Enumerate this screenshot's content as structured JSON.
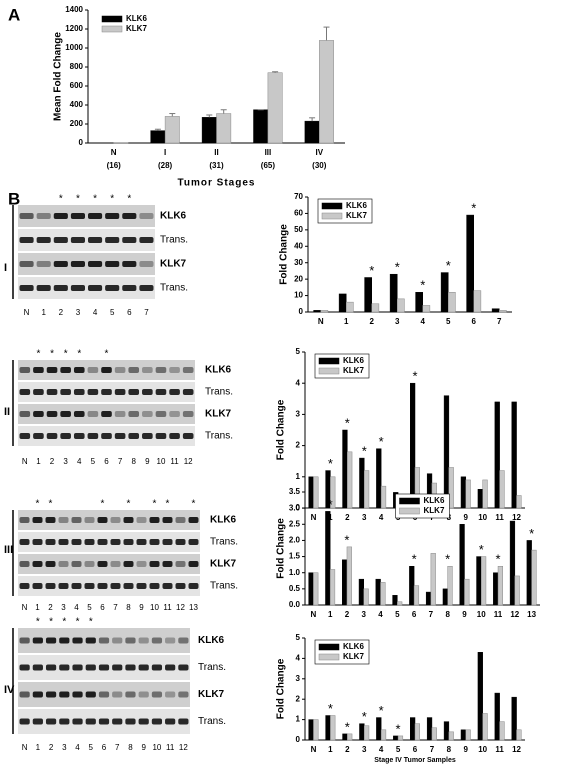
{
  "panel_labels": [
    "A",
    "B"
  ],
  "chart_data": [
    {
      "type": "bar",
      "y_label": "Mean Fold Change",
      "x_label": "Tumor Stages",
      "categories": [
        "N",
        "I",
        "II",
        "III",
        "IV"
      ],
      "category_sublabels": [
        "(16)",
        "(28)",
        "(31)",
        "(65)",
        "(30)"
      ],
      "series": [
        {
          "name": "KLK6",
          "color": "#000000",
          "values": [
            1,
            130,
            270,
            350,
            230
          ],
          "errors": [
            null,
            15,
            25,
            0,
            35
          ]
        },
        {
          "name": "KLK7",
          "color": "#c8c8c8",
          "values": [
            1,
            280,
            310,
            740,
            1080
          ],
          "errors": [
            null,
            30,
            40,
            10,
            140
          ]
        }
      ],
      "ylim": [
        0,
        1400
      ],
      "yticks": [
        0,
        200,
        400,
        600,
        800,
        1000,
        1200,
        1400
      ],
      "legend": "upper left"
    },
    {
      "type": "bar",
      "y_label": "Fold Change",
      "star_text": "*",
      "categories": [
        "N",
        "1",
        "2",
        "3",
        "4",
        "5",
        "6",
        "7"
      ],
      "starred": [
        false,
        false,
        true,
        true,
        true,
        true,
        true,
        false
      ],
      "series": [
        {
          "name": "KLK6",
          "color": "#000000",
          "values": [
            1,
            11,
            21,
            23,
            12,
            24,
            59,
            2
          ]
        },
        {
          "name": "KLK7",
          "color": "#c8c8c8",
          "values": [
            1,
            6,
            5,
            8,
            4,
            12,
            13,
            1
          ]
        }
      ],
      "ylim": [
        0,
        70
      ],
      "yticks": [
        0,
        10,
        20,
        30,
        40,
        50,
        60,
        70
      ],
      "legend": "upper left"
    },
    {
      "type": "bar",
      "y_label": "Fold Change",
      "star_text": "*",
      "categories": [
        "N",
        "1",
        "2",
        "3",
        "4",
        "5",
        "6",
        "7",
        "8",
        "9",
        "10",
        "11",
        "12"
      ],
      "starred": [
        false,
        true,
        true,
        true,
        true,
        false,
        true,
        false,
        false,
        false,
        false,
        false,
        false
      ],
      "series": [
        {
          "name": "KLK6",
          "color": "#000000",
          "values": [
            1,
            1.2,
            2.5,
            1.6,
            1.9,
            0.5,
            4.0,
            1.1,
            3.6,
            1.0,
            0.6,
            3.4,
            3.4
          ]
        },
        {
          "name": "KLK7",
          "color": "#c8c8c8",
          "values": [
            1,
            1.0,
            1.8,
            1.2,
            0.7,
            0.4,
            1.3,
            0.8,
            1.3,
            0.9,
            0.9,
            1.2,
            0.4
          ]
        }
      ],
      "ylim": [
        0,
        5
      ],
      "yticks": [
        0,
        1,
        2,
        3,
        4,
        5
      ],
      "legend": "upper left"
    },
    {
      "type": "bar",
      "y_label": "Fold Change",
      "star_text": "*",
      "categories": [
        "N",
        "1",
        "2",
        "3",
        "4",
        "5",
        "6",
        "7",
        "8",
        "9",
        "10",
        "11",
        "12",
        "13"
      ],
      "starred": [
        false,
        true,
        true,
        false,
        false,
        false,
        true,
        false,
        true,
        false,
        true,
        true,
        false,
        true
      ],
      "series": [
        {
          "name": "KLK6",
          "color": "#000000",
          "values": [
            1,
            2.9,
            1.4,
            0.8,
            0.8,
            0.3,
            1.2,
            0.4,
            0.5,
            2.5,
            1.5,
            1.0,
            2.6,
            2.0
          ]
        },
        {
          "name": "KLK7",
          "color": "#c8c8c8",
          "values": [
            1,
            1.1,
            1.8,
            0.5,
            0.7,
            0.1,
            0.6,
            1.6,
            1.2,
            0.8,
            1.5,
            1.2,
            0.9,
            1.7
          ]
        }
      ],
      "ylim": [
        0,
        3.5
      ],
      "yticks": [
        {
          "value": 0,
          "label": "0.0"
        },
        0.5,
        {
          "value": 1,
          "label": "1.0"
        },
        1.5,
        {
          "value": 2,
          "label": "2.0"
        },
        2.5,
        {
          "value": 3,
          "label": "3.0"
        },
        3.5
      ],
      "legend": "upper center"
    },
    {
      "type": "bar",
      "y_label": "Fold Change",
      "x_label": "Stage IV Tumor Samples",
      "star_text": "*",
      "categories": [
        "N",
        "1",
        "2",
        "3",
        "4",
        "5",
        "6",
        "7",
        "8",
        "9",
        "10",
        "11",
        "12"
      ],
      "starred": [
        false,
        true,
        true,
        true,
        true,
        true,
        false,
        false,
        false,
        false,
        false,
        false,
        false
      ],
      "series": [
        {
          "name": "KLK6",
          "color": "#000000",
          "values": [
            1,
            1.2,
            0.3,
            0.8,
            1.1,
            0.2,
            1.1,
            1.1,
            0.9,
            0.5,
            4.3,
            2.3,
            2.1
          ]
        },
        {
          "name": "KLK7",
          "color": "#c8c8c8",
          "values": [
            1,
            1.2,
            0.3,
            0.7,
            0.5,
            0.2,
            0.8,
            0.6,
            0.4,
            0.5,
            1.3,
            0.9,
            0.5
          ]
        }
      ],
      "ylim": [
        0,
        5
      ],
      "yticks": [
        0,
        1,
        2,
        3,
        4,
        5
      ],
      "legend": "upper left"
    }
  ],
  "blots": [
    {
      "stage": "I",
      "star_text": "*",
      "rows": [
        "KLK6",
        "Trans.",
        "KLK7",
        "Trans."
      ],
      "lanes": [
        "N",
        "1",
        "2",
        "3",
        "4",
        "5",
        "6",
        "7"
      ],
      "starred": [
        false,
        false,
        true,
        true,
        true,
        true,
        true,
        false
      ]
    },
    {
      "stage": "II",
      "star_text": "*",
      "rows": [
        "KLK6",
        "Trans.",
        "KLK7",
        "Trans."
      ],
      "lanes": [
        "N",
        "1",
        "2",
        "3",
        "4",
        "5",
        "6",
        "7",
        "8",
        "9",
        "10",
        "11",
        "12"
      ],
      "starred": [
        false,
        true,
        true,
        true,
        true,
        false,
        true,
        false,
        false,
        false,
        false,
        false,
        false
      ]
    },
    {
      "stage": "III",
      "star_text": "*",
      "rows": [
        "KLK6",
        "Trans.",
        "KLK7",
        "Trans."
      ],
      "lanes": [
        "N",
        "1",
        "2",
        "3",
        "4",
        "5",
        "6",
        "7",
        "8",
        "9",
        "10",
        "11",
        "12",
        "13"
      ],
      "starred": [
        false,
        true,
        true,
        false,
        false,
        false,
        true,
        false,
        true,
        false,
        true,
        true,
        false,
        true
      ]
    },
    {
      "stage": "IV",
      "star_text": "*",
      "rows": [
        "KLK6",
        "Trans.",
        "KLK7",
        "Trans."
      ],
      "lanes": [
        "N",
        "1",
        "2",
        "3",
        "4",
        "5",
        "6",
        "7",
        "8",
        "9",
        "10",
        "11",
        "12"
      ],
      "starred": [
        false,
        true,
        true,
        true,
        true,
        true,
        false,
        false,
        false,
        false,
        false,
        false,
        false
      ]
    }
  ]
}
